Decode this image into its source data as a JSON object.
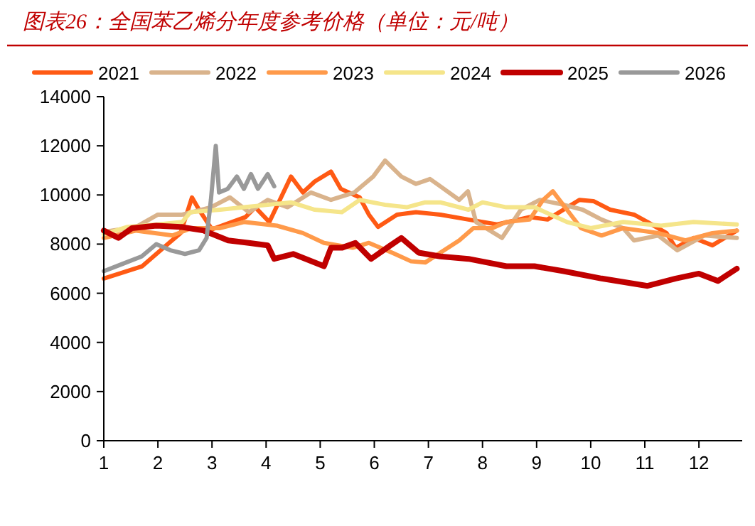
{
  "chart_data": {
    "type": "line",
    "title": "图表26：全国苯乙烯分年度参考价格（单位：元/吨）",
    "legend": "top",
    "grid": false,
    "line_style": "solid",
    "xlim": [
      1,
      12.8
    ],
    "xticks": [
      1,
      2,
      3,
      4,
      5,
      6,
      7,
      8,
      9,
      10,
      11,
      12
    ],
    "ylim": [
      0,
      14000
    ],
    "yticks": [
      0,
      2000,
      4000,
      6000,
      8000,
      10000,
      12000,
      14000
    ],
    "series": [
      {
        "name": "2021",
        "color": "#ff5a14",
        "x": [
          1.0,
          1.71,
          2.18,
          2.42,
          2.63,
          2.76,
          3.0,
          3.62,
          3.8,
          4.06,
          4.46,
          4.68,
          4.9,
          5.2,
          5.38,
          5.73,
          5.9,
          6.07,
          6.42,
          6.77,
          7.22,
          7.74,
          8.27,
          8.87,
          9.2,
          9.79,
          10.05,
          10.36,
          10.8,
          11.05,
          11.4,
          11.57,
          11.9,
          12.25,
          12.7
        ],
        "values": [
          6600,
          7100,
          8000,
          8450,
          9900,
          9400,
          8600,
          9100,
          9500,
          8900,
          10750,
          10100,
          10550,
          10950,
          10250,
          9900,
          9200,
          8700,
          9200,
          9300,
          9200,
          9000,
          8800,
          9100,
          9000,
          9800,
          9750,
          9400,
          9200,
          8900,
          8450,
          7850,
          8250,
          7950,
          8550
        ]
      },
      {
        "name": "2022",
        "color": "#d9b38c",
        "x": [
          1.0,
          1.6,
          2.0,
          2.45,
          2.98,
          3.33,
          3.68,
          4.03,
          4.4,
          4.83,
          5.2,
          5.63,
          5.98,
          6.2,
          6.5,
          6.77,
          7.03,
          7.22,
          7.57,
          7.73,
          7.88,
          8.36,
          8.71,
          9.06,
          9.5,
          9.85,
          10.2,
          10.6,
          10.8,
          11.25,
          11.6,
          12.1,
          12.7
        ],
        "values": [
          8500,
          8700,
          9200,
          9200,
          9500,
          9900,
          9300,
          9800,
          9500,
          10100,
          9800,
          10100,
          10750,
          11400,
          10750,
          10450,
          10650,
          10350,
          9800,
          10150,
          8900,
          8250,
          9400,
          9800,
          9600,
          9400,
          9000,
          8650,
          8150,
          8350,
          7750,
          8350,
          8250
        ]
      },
      {
        "name": "2023",
        "color": "#ff9a4a",
        "x": [
          1.0,
          1.6,
          2.27,
          2.62,
          3.15,
          3.59,
          4.2,
          4.68,
          5.07,
          5.6,
          5.9,
          6.33,
          6.68,
          6.94,
          7.22,
          7.57,
          7.83,
          8.18,
          8.44,
          8.87,
          9.12,
          9.3,
          9.56,
          9.82,
          10.2,
          10.6,
          11.25,
          11.75,
          12.25,
          12.7
        ],
        "values": [
          8250,
          8550,
          8350,
          8650,
          8650,
          8900,
          8750,
          8450,
          8050,
          7850,
          8050,
          7650,
          7300,
          7250,
          7650,
          8150,
          8650,
          8650,
          8900,
          9000,
          9800,
          10150,
          9400,
          8650,
          8350,
          8650,
          8450,
          8150,
          8450,
          8550
        ]
      },
      {
        "name": "2024",
        "color": "#f5e58a",
        "x": [
          1.0,
          1.44,
          2.0,
          2.45,
          2.6,
          3.15,
          3.59,
          4.03,
          4.46,
          4.9,
          5.4,
          5.73,
          6.2,
          6.6,
          6.94,
          7.22,
          7.74,
          8.0,
          8.44,
          8.96,
          9.56,
          10.0,
          10.6,
          11.3,
          11.9,
          12.7
        ],
        "values": [
          8400,
          8700,
          8800,
          8900,
          9300,
          9400,
          9500,
          9600,
          9700,
          9400,
          9300,
          9800,
          9600,
          9500,
          9700,
          9700,
          9400,
          9700,
          9500,
          9500,
          8900,
          8650,
          8900,
          8750,
          8900,
          8800
        ]
      },
      {
        "name": "2025",
        "color": "#c00000",
        "x": [
          1.0,
          1.27,
          1.52,
          1.97,
          2.42,
          2.85,
          3.3,
          3.68,
          4.03,
          4.15,
          4.5,
          5.07,
          5.2,
          5.4,
          5.65,
          5.94,
          6.3,
          6.5,
          6.82,
          7.22,
          7.74,
          8.44,
          8.96,
          9.5,
          10.2,
          11.05,
          11.57,
          12.0,
          12.35,
          12.7
        ],
        "values": [
          8550,
          8250,
          8650,
          8750,
          8700,
          8550,
          8150,
          8050,
          7950,
          7400,
          7600,
          7100,
          7850,
          7850,
          8050,
          7400,
          7950,
          8250,
          7650,
          7500,
          7400,
          7100,
          7100,
          6900,
          6600,
          6300,
          6600,
          6800,
          6500,
          7000
        ]
      },
      {
        "name": "2026",
        "color": "#999999",
        "x": [
          1.0,
          1.35,
          1.7,
          1.97,
          2.23,
          2.5,
          2.76,
          2.9,
          2.98,
          3.07,
          3.13,
          3.29,
          3.46,
          3.59,
          3.72,
          3.85,
          4.03,
          4.15
        ],
        "values": [
          6900,
          7200,
          7500,
          8000,
          7750,
          7600,
          7750,
          8250,
          9800,
          12000,
          10100,
          10250,
          10750,
          10250,
          10850,
          10250,
          10850,
          10350
        ]
      }
    ]
  }
}
